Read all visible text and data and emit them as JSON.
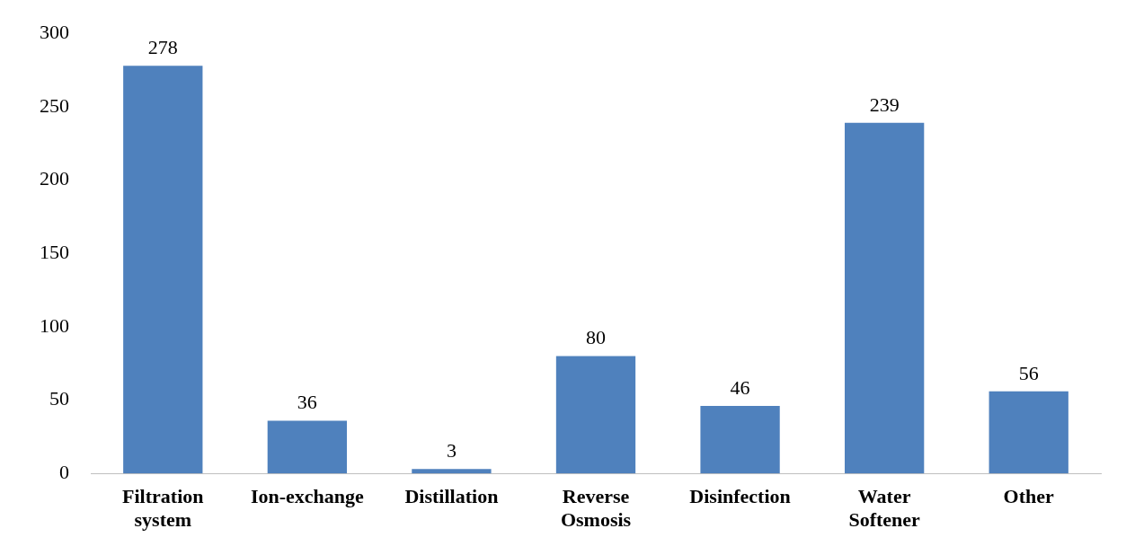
{
  "chart_data": {
    "type": "bar",
    "categories": [
      "Filtration system",
      "Ion-exchange",
      "Distillation",
      "Reverse Osmosis",
      "Disinfection",
      "Water Softener",
      "Other"
    ],
    "values": [
      278,
      36,
      3,
      80,
      46,
      239,
      56
    ],
    "color": "#4f81bd",
    "ylim": [
      0,
      300
    ],
    "yticks": [
      0,
      50,
      100,
      150,
      200,
      250,
      300
    ],
    "grid": false,
    "legend": false,
    "data_labels": true
  }
}
